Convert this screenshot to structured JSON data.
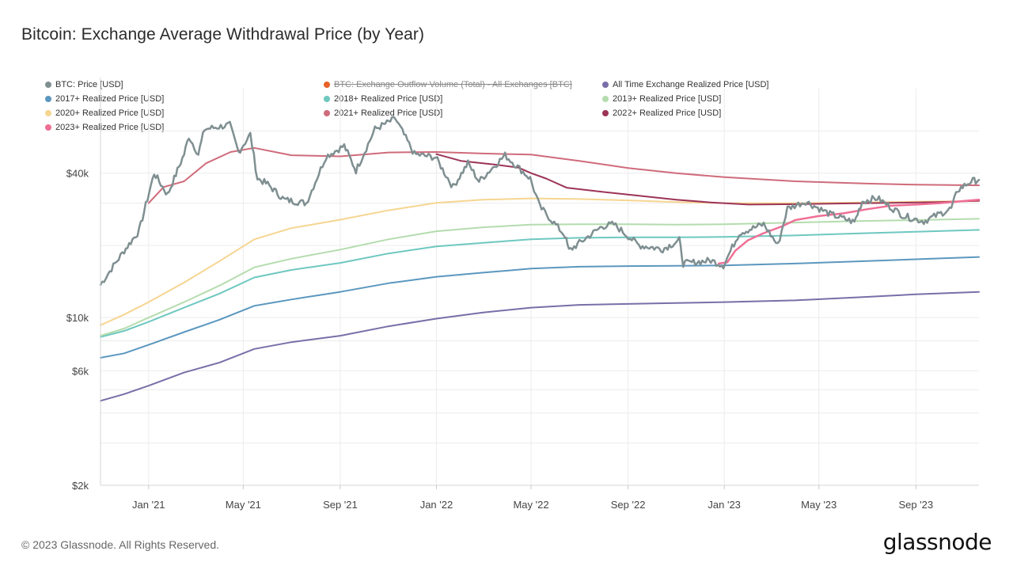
{
  "header": {
    "title": "Bitcoin: Exchange Average Withdrawal Price (by Year)"
  },
  "footer": {
    "copyright": "© 2023 Glassnode. All Rights Reserved.",
    "brand": "glassnode"
  },
  "legend": [
    {
      "label": "BTC: Price [USD]",
      "color": "#7f8f91",
      "enabled": true
    },
    {
      "label": "BTC: Exchange Outflow Volume (Total) - All Exchanges [BTC]",
      "color": "#e8622a",
      "enabled": false
    },
    {
      "label": "All Time Exchange Realized Price [USD]",
      "color": "#7a6ea8",
      "enabled": true
    },
    {
      "label": "2017+ Realized Price [USD]",
      "color": "#5b97bf",
      "enabled": true
    },
    {
      "label": "2018+ Realized Price [USD]",
      "color": "#6ec8c0",
      "enabled": true
    },
    {
      "label": "2019+ Realized Price [USD]",
      "color": "#b4dcae",
      "enabled": true
    },
    {
      "label": "2020+ Realized Price [USD]",
      "color": "#f6d591",
      "enabled": true
    },
    {
      "label": "2021+ Realized Price [USD]",
      "color": "#cf6b7b",
      "enabled": true
    },
    {
      "label": "2022+ Realized Price [USD]",
      "color": "#9c3458",
      "enabled": true
    },
    {
      "label": "2023+ Realized Price [USD]",
      "color": "#ef6f95",
      "enabled": true
    }
  ],
  "chart_data": {
    "type": "line",
    "title": "Bitcoin: Exchange Average Withdrawal Price (by Year)",
    "y_scale": "log",
    "ylim": [
      2000,
      90000
    ],
    "y_ticks": [
      {
        "value": 2000,
        "label": "$2k"
      },
      {
        "value": 6000,
        "label": "$6k"
      },
      {
        "value": 10000,
        "label": "$10k"
      },
      {
        "value": 40000,
        "label": "$40k"
      }
    ],
    "y_gridlines": [
      3000,
      4000,
      5000,
      6000,
      8000,
      10000,
      20000,
      30000,
      40000,
      60000
    ],
    "xlim": [
      "2020-11-01",
      "2023-11-20"
    ],
    "x_ticks": [
      {
        "value": "2021-01-01",
        "label": "Jan '21"
      },
      {
        "value": "2021-05-01",
        "label": "May '21"
      },
      {
        "value": "2021-09-01",
        "label": "Sep '21"
      },
      {
        "value": "2022-01-01",
        "label": "Jan '22"
      },
      {
        "value": "2022-05-01",
        "label": "May '22"
      },
      {
        "value": "2022-09-01",
        "label": "Sep '22"
      },
      {
        "value": "2023-01-01",
        "label": "Jan '23"
      },
      {
        "value": "2023-05-01",
        "label": "May '23"
      },
      {
        "value": "2023-09-01",
        "label": "Sep '23"
      }
    ],
    "grid": true,
    "legend_position": "top",
    "series": [
      {
        "name": "All Time Exchange Realized Price [USD]",
        "color": "#7a6ea8",
        "width": 2,
        "points": [
          [
            "2020-11-01",
            4500
          ],
          [
            "2020-12-01",
            4800
          ],
          [
            "2021-01-01",
            5200
          ],
          [
            "2021-02-15",
            5900
          ],
          [
            "2021-04-01",
            6500
          ],
          [
            "2021-05-15",
            7400
          ],
          [
            "2021-07-01",
            7900
          ],
          [
            "2021-09-01",
            8400
          ],
          [
            "2021-11-01",
            9200
          ],
          [
            "2022-01-01",
            9900
          ],
          [
            "2022-03-01",
            10500
          ],
          [
            "2022-05-01",
            11000
          ],
          [
            "2022-07-01",
            11300
          ],
          [
            "2022-09-01",
            11400
          ],
          [
            "2022-11-01",
            11500
          ],
          [
            "2023-01-01",
            11600
          ],
          [
            "2023-04-01",
            11800
          ],
          [
            "2023-07-01",
            12200
          ],
          [
            "2023-09-01",
            12500
          ],
          [
            "2023-11-20",
            12800
          ]
        ]
      },
      {
        "name": "2017+ Realized Price [USD]",
        "color": "#5b97bf",
        "width": 2,
        "points": [
          [
            "2020-11-01",
            6800
          ],
          [
            "2020-12-01",
            7100
          ],
          [
            "2021-01-01",
            7700
          ],
          [
            "2021-02-15",
            8700
          ],
          [
            "2021-04-01",
            9800
          ],
          [
            "2021-05-15",
            11200
          ],
          [
            "2021-07-01",
            11900
          ],
          [
            "2021-09-01",
            12800
          ],
          [
            "2021-11-01",
            13900
          ],
          [
            "2022-01-01",
            14800
          ],
          [
            "2022-03-01",
            15400
          ],
          [
            "2022-05-01",
            16000
          ],
          [
            "2022-07-01",
            16300
          ],
          [
            "2022-09-01",
            16400
          ],
          [
            "2022-11-01",
            16450
          ],
          [
            "2023-01-01",
            16500
          ],
          [
            "2023-04-01",
            16800
          ],
          [
            "2023-07-01",
            17200
          ],
          [
            "2023-09-01",
            17500
          ],
          [
            "2023-11-20",
            17900
          ]
        ]
      },
      {
        "name": "2018+ Realized Price [USD]",
        "color": "#6ec8c0",
        "width": 2,
        "points": [
          [
            "2020-11-01",
            8300
          ],
          [
            "2020-12-01",
            8800
          ],
          [
            "2021-01-01",
            9600
          ],
          [
            "2021-02-15",
            11000
          ],
          [
            "2021-04-01",
            12600
          ],
          [
            "2021-05-15",
            14700
          ],
          [
            "2021-07-01",
            15800
          ],
          [
            "2021-09-01",
            16900
          ],
          [
            "2021-11-01",
            18500
          ],
          [
            "2022-01-01",
            19800
          ],
          [
            "2022-03-01",
            20500
          ],
          [
            "2022-05-01",
            21200
          ],
          [
            "2022-07-01",
            21500
          ],
          [
            "2022-09-01",
            21600
          ],
          [
            "2022-11-01",
            21600
          ],
          [
            "2023-01-01",
            21700
          ],
          [
            "2023-04-01",
            22000
          ],
          [
            "2023-07-01",
            22500
          ],
          [
            "2023-09-01",
            22800
          ],
          [
            "2023-11-20",
            23200
          ]
        ]
      },
      {
        "name": "2019+ Realized Price [USD]",
        "color": "#b4dcae",
        "width": 2,
        "points": [
          [
            "2020-11-01",
            8400
          ],
          [
            "2020-12-01",
            9000
          ],
          [
            "2021-01-01",
            10000
          ],
          [
            "2021-02-15",
            11600
          ],
          [
            "2021-04-01",
            13600
          ],
          [
            "2021-05-15",
            16200
          ],
          [
            "2021-07-01",
            17600
          ],
          [
            "2021-09-01",
            19200
          ],
          [
            "2021-11-01",
            21200
          ],
          [
            "2022-01-01",
            22900
          ],
          [
            "2022-03-01",
            23800
          ],
          [
            "2022-05-01",
            24400
          ],
          [
            "2022-07-01",
            24500
          ],
          [
            "2022-09-01",
            24500
          ],
          [
            "2022-11-01",
            24400
          ],
          [
            "2023-01-01",
            24500
          ],
          [
            "2023-04-01",
            24900
          ],
          [
            "2023-07-01",
            25300
          ],
          [
            "2023-09-01",
            25500
          ],
          [
            "2023-11-20",
            25800
          ]
        ]
      },
      {
        "name": "2020+ Realized Price [USD]",
        "color": "#f6d591",
        "width": 2,
        "points": [
          [
            "2020-11-01",
            9300
          ],
          [
            "2020-12-01",
            10300
          ],
          [
            "2021-01-01",
            11600
          ],
          [
            "2021-02-15",
            14000
          ],
          [
            "2021-04-01",
            17200
          ],
          [
            "2021-05-15",
            21200
          ],
          [
            "2021-07-01",
            23600
          ],
          [
            "2021-09-01",
            25600
          ],
          [
            "2021-11-01",
            28000
          ],
          [
            "2022-01-01",
            30100
          ],
          [
            "2022-03-01",
            31000
          ],
          [
            "2022-05-01",
            31400
          ],
          [
            "2022-07-01",
            31200
          ],
          [
            "2022-09-01",
            30800
          ],
          [
            "2022-11-01",
            30300
          ],
          [
            "2023-01-01",
            30000
          ],
          [
            "2023-04-01",
            30000
          ],
          [
            "2023-07-01",
            30200
          ],
          [
            "2023-09-01",
            30400
          ],
          [
            "2023-11-20",
            30600
          ]
        ]
      },
      {
        "name": "2021+ Realized Price [USD]",
        "color": "#cf6b7b",
        "width": 2,
        "points": [
          [
            "2021-01-01",
            30000
          ],
          [
            "2021-01-20",
            35000
          ],
          [
            "2021-02-15",
            37000
          ],
          [
            "2021-03-15",
            44000
          ],
          [
            "2021-04-15",
            49000
          ],
          [
            "2021-05-15",
            51000
          ],
          [
            "2021-07-01",
            47500
          ],
          [
            "2021-09-01",
            47000
          ],
          [
            "2021-11-01",
            48800
          ],
          [
            "2022-01-01",
            49000
          ],
          [
            "2022-03-01",
            48300
          ],
          [
            "2022-05-01",
            47800
          ],
          [
            "2022-07-01",
            45000
          ],
          [
            "2022-09-01",
            42000
          ],
          [
            "2022-11-01",
            40000
          ],
          [
            "2023-01-01",
            38500
          ],
          [
            "2023-04-01",
            37000
          ],
          [
            "2023-07-01",
            36200
          ],
          [
            "2023-09-01",
            35800
          ],
          [
            "2023-11-20",
            35600
          ]
        ]
      },
      {
        "name": "2022+ Realized Price [USD]",
        "color": "#9c3458",
        "width": 2,
        "points": [
          [
            "2022-01-01",
            48000
          ],
          [
            "2022-02-01",
            45000
          ],
          [
            "2022-03-15",
            43500
          ],
          [
            "2022-04-15",
            42200
          ],
          [
            "2022-05-01",
            40000
          ],
          [
            "2022-05-20",
            38000
          ],
          [
            "2022-06-15",
            34800
          ],
          [
            "2022-08-01",
            33400
          ],
          [
            "2022-09-15",
            32200
          ],
          [
            "2022-11-01",
            31000
          ],
          [
            "2022-12-15",
            30200
          ],
          [
            "2023-02-01",
            29600
          ],
          [
            "2023-04-01",
            29700
          ],
          [
            "2023-06-01",
            29900
          ],
          [
            "2023-08-01",
            30100
          ],
          [
            "2023-10-01",
            30300
          ],
          [
            "2023-11-20",
            30700
          ]
        ]
      },
      {
        "name": "2023+ Realized Price [USD]",
        "color": "#ef6f95",
        "width": 2.5,
        "points": [
          [
            "2022-12-25",
            16800
          ],
          [
            "2023-01-05",
            17000
          ],
          [
            "2023-01-15",
            19000
          ],
          [
            "2023-01-31",
            21000
          ],
          [
            "2023-02-20",
            22500
          ],
          [
            "2023-03-15",
            24000
          ],
          [
            "2023-04-01",
            25500
          ],
          [
            "2023-05-01",
            26500
          ],
          [
            "2023-06-01",
            27200
          ],
          [
            "2023-07-01",
            28300
          ],
          [
            "2023-08-01",
            29300
          ],
          [
            "2023-09-01",
            29600
          ],
          [
            "2023-10-01",
            30000
          ],
          [
            "2023-11-20",
            31000
          ]
        ]
      },
      {
        "name": "BTC: Price [USD]",
        "color": "#7f8f91",
        "width": 2.5,
        "jitter": true,
        "points": [
          [
            "2020-11-01",
            13700
          ],
          [
            "2020-11-15",
            16000
          ],
          [
            "2020-12-01",
            19000
          ],
          [
            "2020-12-20",
            23000
          ],
          [
            "2021-01-08",
            40000
          ],
          [
            "2021-01-25",
            32500
          ],
          [
            "2021-02-15",
            48000
          ],
          [
            "2021-02-21",
            57000
          ],
          [
            "2021-03-05",
            48000
          ],
          [
            "2021-03-13",
            61000
          ],
          [
            "2021-04-14",
            63500
          ],
          [
            "2021-04-25",
            49000
          ],
          [
            "2021-05-10",
            58000
          ],
          [
            "2021-05-19",
            38000
          ],
          [
            "2021-06-01",
            36000
          ],
          [
            "2021-06-22",
            31000
          ],
          [
            "2021-07-20",
            30000
          ],
          [
            "2021-08-14",
            47000
          ],
          [
            "2021-09-06",
            52000
          ],
          [
            "2021-09-21",
            41000
          ],
          [
            "2021-10-15",
            61000
          ],
          [
            "2021-11-10",
            67500
          ],
          [
            "2021-12-04",
            48000
          ],
          [
            "2021-12-31",
            46500
          ],
          [
            "2022-01-22",
            35000
          ],
          [
            "2022-02-10",
            44000
          ],
          [
            "2022-02-24",
            37000
          ],
          [
            "2022-03-29",
            47500
          ],
          [
            "2022-04-30",
            38000
          ],
          [
            "2022-05-12",
            29000
          ],
          [
            "2022-06-13",
            22000
          ],
          [
            "2022-06-18",
            19000
          ],
          [
            "2022-07-30",
            24000
          ],
          [
            "2022-08-14",
            24500
          ],
          [
            "2022-09-15",
            20000
          ],
          [
            "2022-10-15",
            19300
          ],
          [
            "2022-11-05",
            21000
          ],
          [
            "2022-11-10",
            16800
          ],
          [
            "2022-12-15",
            17300
          ],
          [
            "2022-12-31",
            16500
          ],
          [
            "2023-01-20",
            22500
          ],
          [
            "2023-02-20",
            24500
          ],
          [
            "2023-03-10",
            20000
          ],
          [
            "2023-03-22",
            28500
          ],
          [
            "2023-04-14",
            30500
          ],
          [
            "2023-05-15",
            27000
          ],
          [
            "2023-06-15",
            25000
          ],
          [
            "2023-06-25",
            30500
          ],
          [
            "2023-07-14",
            31500
          ],
          [
            "2023-08-17",
            26500
          ],
          [
            "2023-09-11",
            25200
          ],
          [
            "2023-10-16",
            28500
          ],
          [
            "2023-10-24",
            34000
          ],
          [
            "2023-11-10",
            37000
          ],
          [
            "2023-11-20",
            37500
          ]
        ]
      }
    ]
  }
}
